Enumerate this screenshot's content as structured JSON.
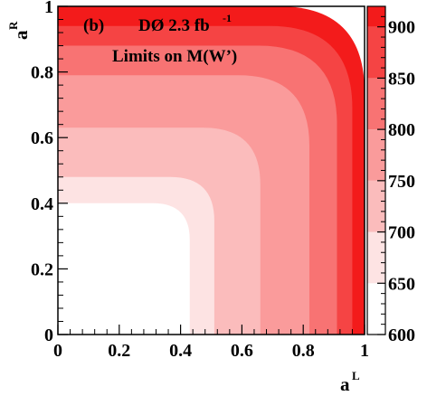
{
  "chart_data": {
    "type": "heatmap",
    "annotation": {
      "tag": "(b)",
      "experiment": "DØ 2.3 fb",
      "experiment_sup": "-1",
      "subtitle": "Limits on M(W’)"
    },
    "xlabel": "a",
    "xlabel_sup": "L",
    "ylabel": "a",
    "ylabel_sup": "R",
    "xlim": [
      0,
      1
    ],
    "ylim": [
      0,
      1
    ],
    "x_ticks": [
      "0",
      "0.2",
      "0.4",
      "0.6",
      "0.8",
      "1"
    ],
    "y_ticks": [
      "0",
      "0.2",
      "0.4",
      "0.6",
      "0.8",
      "1"
    ],
    "color_scale": {
      "min": 600,
      "max": 920,
      "ticks": [
        "600",
        "650",
        "700",
        "750",
        "800",
        "850",
        "900"
      ]
    },
    "contours": [
      {
        "level": 600,
        "color": "#ffffff",
        "x_edge": 0.43,
        "y_edge": 0.4
      },
      {
        "level": 650,
        "color": "#fde3e3",
        "x_edge": 0.51,
        "y_edge": 0.48
      },
      {
        "level": 700,
        "color": "#fbbcbc",
        "x_edge": 0.66,
        "y_edge": 0.63
      },
      {
        "level": 750,
        "color": "#fa9b9b",
        "x_edge": 0.82,
        "y_edge": 0.79
      },
      {
        "level": 800,
        "color": "#f87373",
        "x_edge": 0.91,
        "y_edge": 0.88
      },
      {
        "level": 850,
        "color": "#f54444",
        "x_edge": 0.96,
        "y_edge": 0.94
      },
      {
        "level": 900,
        "color": "#f31b1b",
        "x_edge": 1.0,
        "y_edge": 1.0
      }
    ]
  }
}
